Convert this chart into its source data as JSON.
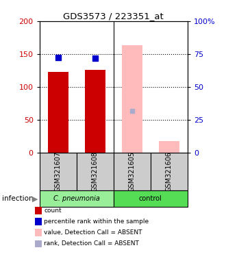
{
  "title": "GDS3573 / 223351_at",
  "samples": [
    "GSM321607",
    "GSM321608",
    "GSM321605",
    "GSM321606"
  ],
  "groups": [
    {
      "name": "C. pneumonia",
      "color": "#99ee99",
      "span": [
        0,
        2
      ]
    },
    {
      "name": "control",
      "color": "#55dd55",
      "span": [
        2,
        4
      ]
    }
  ],
  "count_values": [
    123,
    126,
    null,
    null
  ],
  "percentile_values": [
    145,
    143,
    null,
    null
  ],
  "count_absent_values": [
    null,
    null,
    163,
    17
  ],
  "rank_absent_values": [
    null,
    null,
    63,
    null
  ],
  "left_ylim": [
    0,
    200
  ],
  "right_ylim": [
    0,
    100
  ],
  "left_yticks": [
    0,
    50,
    100,
    150,
    200
  ],
  "right_yticks": [
    0,
    25,
    50,
    75,
    100
  ],
  "right_yticklabels": [
    "0",
    "25",
    "50",
    "75",
    "100%"
  ],
  "count_color": "#cc0000",
  "percentile_color": "#0000cc",
  "count_absent_color": "#ffbbbb",
  "rank_absent_color": "#aaaacc",
  "sample_bg_color": "#cccccc",
  "infection_label": "infection",
  "legend_items": [
    {
      "color": "#cc0000",
      "label": "count",
      "square": true
    },
    {
      "color": "#0000cc",
      "label": "percentile rank within the sample",
      "square": true
    },
    {
      "color": "#ffbbbb",
      "label": "value, Detection Call = ABSENT",
      "square": true
    },
    {
      "color": "#aaaacc",
      "label": "rank, Detection Call = ABSENT",
      "square": true
    }
  ]
}
